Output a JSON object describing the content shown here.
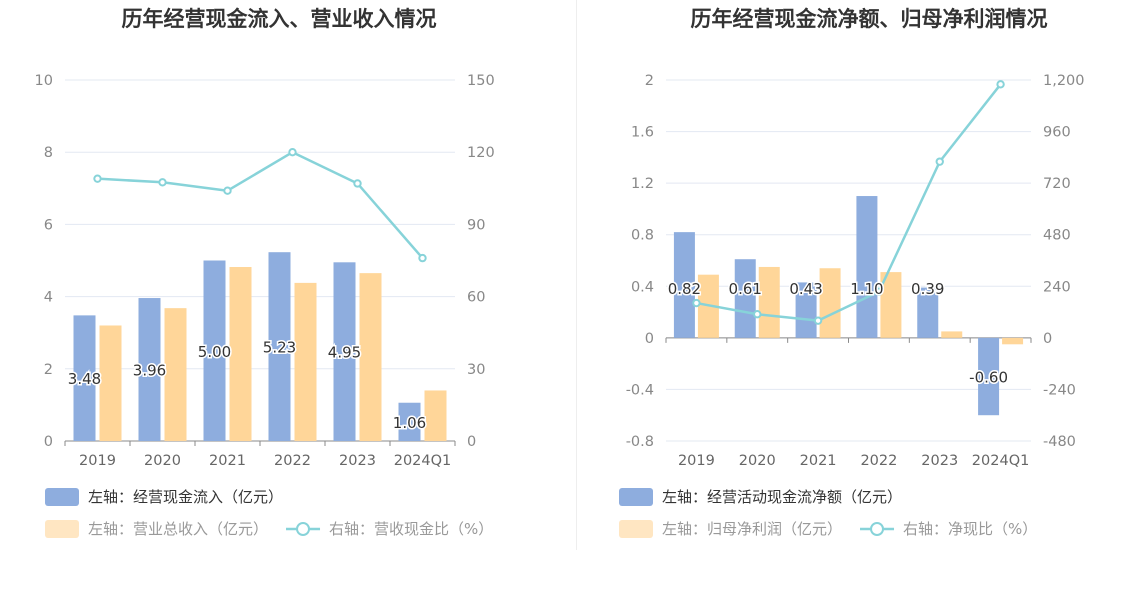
{
  "colors": {
    "bar_blue": "#8eadde",
    "bar_orange": "#ffd699",
    "legend_orange_box": "#ffe6c2",
    "line": "#87d3d9",
    "grid": "#e3e8f2",
    "axis": "#8a8a8a"
  },
  "chart_data": [
    {
      "type": "bar",
      "title": "历年经营现金流入、营业收入情况",
      "categories": [
        "2019",
        "2020",
        "2021",
        "2022",
        "2023",
        "2024Q1"
      ],
      "y_left": {
        "range": [
          0,
          10
        ],
        "ticks": [
          "0",
          "2",
          "4",
          "6",
          "8",
          "10"
        ]
      },
      "y_right": {
        "range": [
          0,
          150
        ],
        "ticks": [
          "0",
          "30",
          "60",
          "90",
          "120",
          "150"
        ]
      },
      "grid": true,
      "series": [
        {
          "name": "左轴：经营现金流入（亿元）",
          "type": "bar",
          "axis": "left",
          "values": [
            3.48,
            3.96,
            5.0,
            5.23,
            4.95,
            1.06
          ],
          "labels": [
            "3.48",
            "3.96",
            "5.00",
            "5.23",
            "4.95",
            "1.06"
          ]
        },
        {
          "name": "左轴：营业总收入（亿元）",
          "type": "bar",
          "axis": "left",
          "values": [
            3.2,
            3.68,
            4.82,
            4.38,
            4.65,
            1.4
          ]
        },
        {
          "name": "右轴：营收现金比（%）",
          "type": "line",
          "axis": "right",
          "values": [
            109,
            107.5,
            104,
            120,
            107,
            76
          ]
        }
      ],
      "legend": {
        "position": "bottom-left",
        "items": [
          "左轴：经营现金流入（亿元）",
          "左轴：营业总收入（亿元）",
          "右轴：营收现金比（%）"
        ]
      }
    },
    {
      "type": "bar",
      "title": "历年经营现金流净额、归母净利润情况",
      "categories": [
        "2019",
        "2020",
        "2021",
        "2022",
        "2023",
        "2024Q1"
      ],
      "y_left": {
        "range": [
          -0.8,
          2
        ],
        "ticks": [
          "-0.8",
          "-0.4",
          "0",
          "0.4",
          "0.8",
          "1.2",
          "1.6",
          "2"
        ]
      },
      "y_right": {
        "range": [
          -480,
          1200
        ],
        "ticks": [
          "-480",
          "-240",
          "0",
          "240",
          "480",
          "720",
          "960",
          "1,200"
        ]
      },
      "grid": true,
      "series": [
        {
          "name": "左轴：经营活动现金流净额（亿元）",
          "type": "bar",
          "axis": "left",
          "values": [
            0.82,
            0.61,
            0.43,
            1.1,
            0.39,
            -0.6
          ],
          "labels": [
            "0.82",
            "0.61",
            "0.43",
            "1.10",
            "0.39",
            "-0.60"
          ]
        },
        {
          "name": "左轴：归母净利润（亿元）",
          "type": "bar",
          "axis": "left",
          "values": [
            0.49,
            0.55,
            0.54,
            0.51,
            0.05,
            -0.05
          ]
        },
        {
          "name": "右轴：净现比（%）",
          "type": "line",
          "axis": "right",
          "values": [
            162,
            110,
            80,
            215,
            820,
            1180
          ]
        }
      ],
      "legend": {
        "position": "bottom-left",
        "items": [
          "左轴：经营活动现金流净额（亿元）",
          "左轴：归母净利润（亿元）",
          "右轴：净现比（%）"
        ]
      }
    }
  ]
}
